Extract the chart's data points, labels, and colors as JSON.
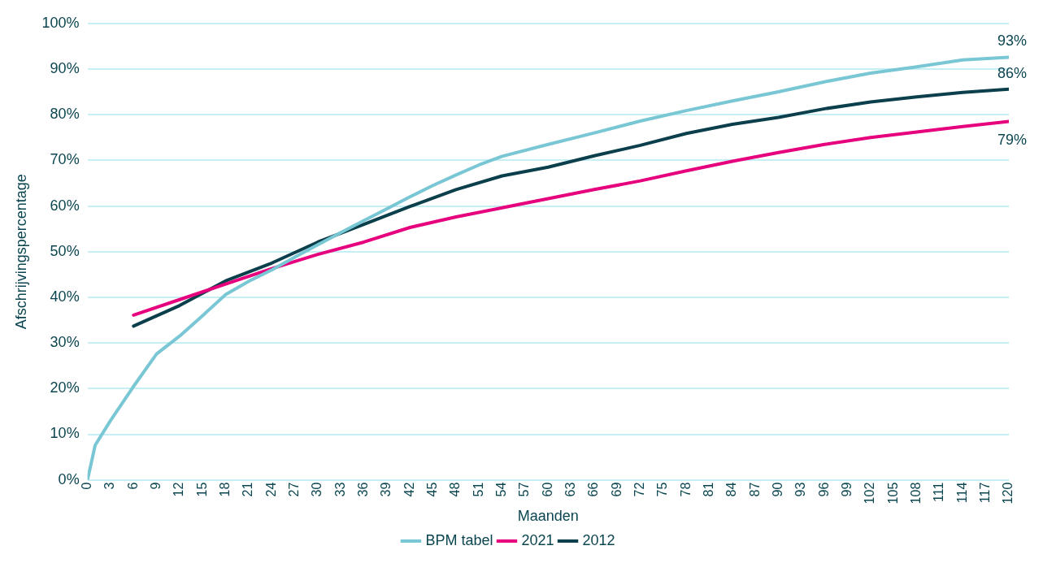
{
  "chart_data": {
    "type": "line",
    "xlabel": "Maanden",
    "ylabel": "Afschrijvingspercentage",
    "xlim": [
      0,
      120
    ],
    "xticks": [
      0,
      3,
      6,
      9,
      12,
      15,
      18,
      21,
      24,
      27,
      30,
      33,
      36,
      39,
      42,
      45,
      48,
      51,
      54,
      57,
      60,
      63,
      66,
      69,
      72,
      75,
      78,
      81,
      84,
      87,
      90,
      93,
      96,
      99,
      102,
      105,
      108,
      111,
      114,
      117,
      120
    ],
    "ylim": [
      0,
      100
    ],
    "yticks": [
      {
        "value": 0,
        "label": "0%"
      },
      {
        "value": 10,
        "label": "10%"
      },
      {
        "value": 20,
        "label": "20%"
      },
      {
        "value": 30,
        "label": "30%"
      },
      {
        "value": 40,
        "label": "40%"
      },
      {
        "value": 50,
        "label": "50%"
      },
      {
        "value": 60,
        "label": "60%"
      },
      {
        "value": 70,
        "label": "70%"
      },
      {
        "value": 80,
        "label": "80%"
      },
      {
        "value": 90,
        "label": "90%"
      },
      {
        "value": 100,
        "label": "100%"
      }
    ],
    "grid": "y",
    "legend": "bottom",
    "marker": "none",
    "line_style": "solid",
    "series": [
      {
        "name": "BPM tabel",
        "color": "#79c7d4",
        "x": [
          0,
          1,
          3,
          6,
          9,
          12,
          15,
          18,
          21,
          24,
          27,
          30,
          33,
          36,
          39,
          42,
          45,
          48,
          51,
          54,
          60,
          66,
          72,
          78,
          84,
          90,
          96,
          102,
          108,
          114,
          120
        ],
        "values": [
          0,
          7.6,
          13,
          20.5,
          27.6,
          31.5,
          36,
          40.6,
          43.5,
          46,
          48.8,
          51.5,
          54.2,
          56.8,
          59.4,
          62,
          64.5,
          66.8,
          69,
          70.9,
          73.5,
          76,
          78.6,
          80.9,
          83,
          85,
          87.2,
          89.1,
          90.5,
          92,
          92.6
        ],
        "value_labels": [
          null,
          null,
          null,
          null,
          null,
          null,
          null,
          null,
          null,
          null,
          null,
          null,
          null,
          null,
          null,
          null,
          null,
          null,
          null,
          null,
          null,
          null,
          null,
          null,
          null,
          null,
          null,
          null,
          null,
          null,
          "93%"
        ]
      },
      {
        "name": "2021",
        "color": "#e6007e",
        "x": [
          6,
          12,
          18,
          24,
          30,
          36,
          42,
          48,
          54,
          60,
          66,
          72,
          78,
          84,
          90,
          96,
          102,
          108,
          114,
          120
        ],
        "values": [
          36.1,
          39.5,
          42.9,
          46.3,
          49.4,
          52.1,
          55.3,
          57.6,
          59.6,
          61.6,
          63.6,
          65.5,
          67.7,
          69.8,
          71.7,
          73.5,
          75,
          76.2,
          77.4,
          78.5
        ],
        "value_labels": [
          null,
          null,
          null,
          null,
          null,
          null,
          null,
          null,
          null,
          null,
          null,
          null,
          null,
          null,
          null,
          null,
          null,
          null,
          null,
          "79%"
        ]
      },
      {
        "name": "2012",
        "color": "#0b3f4b",
        "x": [
          6,
          12,
          18,
          24,
          30,
          36,
          42,
          48,
          54,
          60,
          66,
          72,
          78,
          84,
          90,
          96,
          102,
          108,
          114,
          120
        ],
        "values": [
          33.7,
          38.2,
          43.6,
          47.5,
          52.1,
          56,
          59.9,
          63.6,
          66.6,
          68.5,
          71,
          73.3,
          75.9,
          77.9,
          79.4,
          81.3,
          82.8,
          83.9,
          84.9,
          85.6
        ],
        "value_labels": [
          null,
          null,
          null,
          null,
          null,
          null,
          null,
          null,
          null,
          null,
          null,
          null,
          null,
          null,
          null,
          null,
          null,
          null,
          null,
          "86%"
        ]
      }
    ]
  }
}
